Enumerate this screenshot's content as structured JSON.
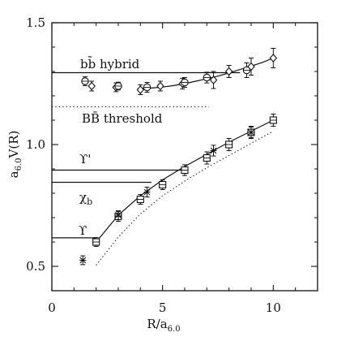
{
  "chart_data": {
    "type": "scatter",
    "title": "",
    "xlabel": "R/a",
    "xlabel_sub": "6.0",
    "ylabel": "a",
    "ylabel_sub": "6.0",
    "ylabel_tail": "V(R)",
    "xlim": [
      0,
      12
    ],
    "ylim": [
      0.4,
      1.5
    ],
    "xticks": [
      {
        "value": 0,
        "label": "0"
      },
      {
        "value": 5,
        "label": "5"
      },
      {
        "value": 10,
        "label": "10"
      }
    ],
    "yticks": [
      {
        "value": 0.5,
        "label": "0.5"
      },
      {
        "value": 1.0,
        "label": "1.0"
      },
      {
        "value": 1.5,
        "label": "1.5"
      }
    ],
    "grid": false,
    "legend": "none",
    "annotations": {
      "hybrid": "bb̄ hybrid",
      "threshold": "BB̄ threshold",
      "upsilon_prime": "ϒ'",
      "chi_b": "χ",
      "chi_b_sub": "b",
      "upsilon": "ϒ"
    },
    "levels": [
      {
        "name_key": "hybrid",
        "y": 1.295,
        "x_start": 0,
        "x_end": 8.5,
        "style": "solid"
      },
      {
        "name_key": "threshold",
        "y": 1.155,
        "x_start": 0,
        "x_end": 7.1,
        "style": "dotted"
      },
      {
        "name_key": "upsilon_prime",
        "y": 0.895,
        "x_start": 0,
        "x_end": 6.0,
        "style": "solid"
      },
      {
        "name_key": "chi_b",
        "y": 0.845,
        "x_start": 0,
        "x_end": 4.5,
        "style": "solid"
      },
      {
        "name_key": "upsilon",
        "y": 0.617,
        "x_start": 0,
        "x_end": 2.0,
        "style": "solid"
      }
    ],
    "curves": [
      {
        "name": "hybrid-fit",
        "style": "solid",
        "x": [
          4.0,
          4.5,
          5.0,
          5.5,
          6.0,
          6.5,
          7.0,
          7.5,
          8.0,
          8.5,
          9.0,
          9.5,
          10.0
        ],
        "y": [
          1.23,
          1.232,
          1.236,
          1.242,
          1.25,
          1.26,
          1.27,
          1.281,
          1.294,
          1.308,
          1.322,
          1.337,
          1.355
        ]
      },
      {
        "name": "ground-fit",
        "style": "solid",
        "x": [
          2.0,
          3.0,
          4.0,
          5.0,
          6.0,
          7.0,
          8.0,
          9.0,
          10.0
        ],
        "y": [
          0.6,
          0.71,
          0.79,
          0.855,
          0.91,
          0.96,
          1.01,
          1.055,
          1.1
        ]
      },
      {
        "name": "ground-fit-lower",
        "style": "dotted",
        "x": [
          2.0,
          3.0,
          4.0,
          5.0,
          6.0,
          7.0,
          8.0,
          9.0,
          10.0
        ],
        "y": [
          0.505,
          0.62,
          0.715,
          0.79,
          0.85,
          0.905,
          0.955,
          1.005,
          1.055
        ]
      }
    ],
    "series": [
      {
        "marker": "diamond",
        "points": [
          {
            "x": 1.8,
            "y": 1.24,
            "err": 0.01
          },
          {
            "x": 2.9,
            "y": 1.235,
            "err": 0.008
          },
          {
            "x": 4.0,
            "y": 1.225,
            "err": 0.01
          },
          {
            "x": 4.9,
            "y": 1.24,
            "err": 0.01
          },
          {
            "x": 5.9,
            "y": 1.25,
            "err": 0.012
          },
          {
            "x": 7.3,
            "y": 1.265,
            "err": 0.025
          },
          {
            "x": 8.0,
            "y": 1.3,
            "err": 0.015
          },
          {
            "x": 9.0,
            "y": 1.32,
            "err": 0.025
          },
          {
            "x": 10.0,
            "y": 1.355,
            "err": 0.03
          }
        ]
      },
      {
        "marker": "circle",
        "points": [
          {
            "x": 1.5,
            "y": 1.26,
            "err": 0.008
          },
          {
            "x": 3.0,
            "y": 1.24,
            "err": 0.006
          },
          {
            "x": 4.3,
            "y": 1.235,
            "err": 0.01
          },
          {
            "x": 6.0,
            "y": 1.255,
            "err": 0.01
          },
          {
            "x": 7.0,
            "y": 1.275,
            "err": 0.012
          },
          {
            "x": 8.8,
            "y": 1.305,
            "err": 0.02
          }
        ]
      },
      {
        "marker": "square",
        "points": [
          {
            "x": 2.0,
            "y": 0.6,
            "err": 0.008
          },
          {
            "x": 3.0,
            "y": 0.705,
            "err": 0.01
          },
          {
            "x": 4.0,
            "y": 0.775,
            "err": 0.01
          },
          {
            "x": 5.0,
            "y": 0.835,
            "err": 0.01
          },
          {
            "x": 6.0,
            "y": 0.895,
            "err": 0.012
          },
          {
            "x": 7.0,
            "y": 0.945,
            "err": 0.015
          },
          {
            "x": 8.0,
            "y": 1.0,
            "err": 0.015
          },
          {
            "x": 9.0,
            "y": 1.05,
            "err": 0.015
          },
          {
            "x": 10.0,
            "y": 1.1,
            "err": 0.015
          }
        ]
      },
      {
        "marker": "cross",
        "points": [
          {
            "x": 1.4,
            "y": 0.525,
            "err": 0.008
          },
          {
            "x": 3.0,
            "y": 0.71,
            "err": 0.008
          },
          {
            "x": 4.3,
            "y": 0.805,
            "err": 0.01
          },
          {
            "x": 7.3,
            "y": 0.975,
            "err": 0.012
          },
          {
            "x": 9.0,
            "y": 1.05,
            "err": 0.012
          }
        ]
      }
    ]
  }
}
